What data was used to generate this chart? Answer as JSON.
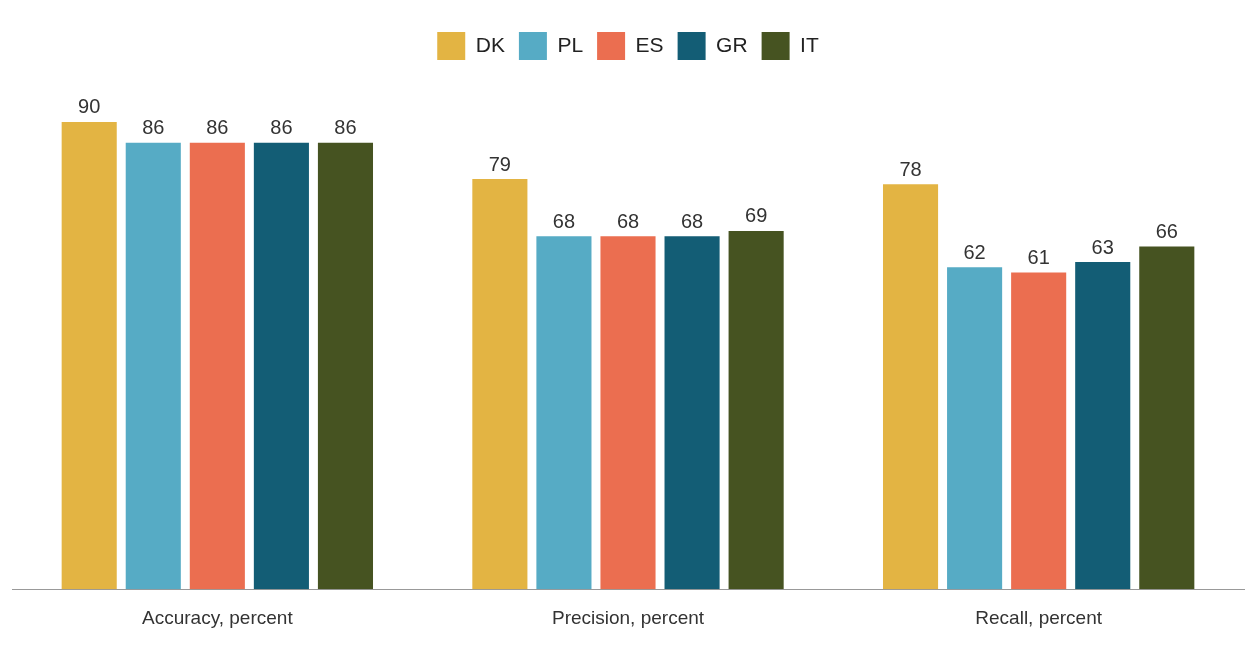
{
  "chart_data": {
    "type": "bar",
    "categories": [
      "Accuracy, percent",
      "Precision, percent",
      "Recall, percent"
    ],
    "series": [
      {
        "name": "DK",
        "color": "#e3b443",
        "values": [
          90,
          79,
          78
        ]
      },
      {
        "name": "PL",
        "color": "#56abc5",
        "values": [
          86,
          68,
          62
        ]
      },
      {
        "name": "ES",
        "color": "#eb6e50",
        "values": [
          86,
          68,
          61
        ]
      },
      {
        "name": "GR",
        "color": "#135d75",
        "values": [
          86,
          68,
          63
        ]
      },
      {
        "name": "IT",
        "color": "#465321",
        "values": [
          86,
          69,
          66
        ]
      }
    ],
    "tick_labels": "x",
    "data_labels": true,
    "legend": "top",
    "grid": false
  }
}
